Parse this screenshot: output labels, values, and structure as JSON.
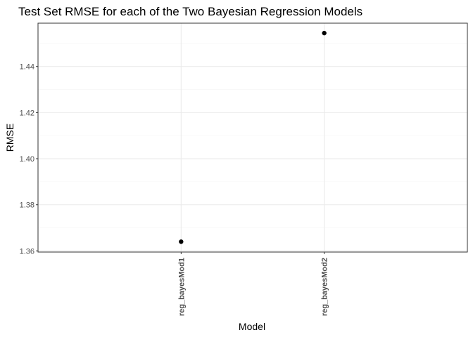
{
  "chart_data": {
    "type": "scatter",
    "title": "Test Set RMSE for each of the Two Bayesian Regression Models",
    "xlabel": "Model",
    "ylabel": "RMSE",
    "categories": [
      "reg_bayesMod1",
      "reg_bayesMod2"
    ],
    "values": [
      1.364,
      1.4545
    ],
    "ylim": [
      1.3595,
      1.4588
    ],
    "y_ticks": [
      1.36,
      1.38,
      1.4,
      1.42,
      1.44
    ],
    "y_tick_labels": [
      "1.36",
      "1.38",
      "1.40",
      "1.42",
      "1.44"
    ],
    "grid": true,
    "legend": "none",
    "theme": "black-and-white",
    "colors": {
      "point": "#000000",
      "panel_border": "#333333",
      "major_grid": "#ebebeb",
      "minor_grid": "#f5f5f5",
      "tick_text": "#4d4d4d"
    }
  }
}
